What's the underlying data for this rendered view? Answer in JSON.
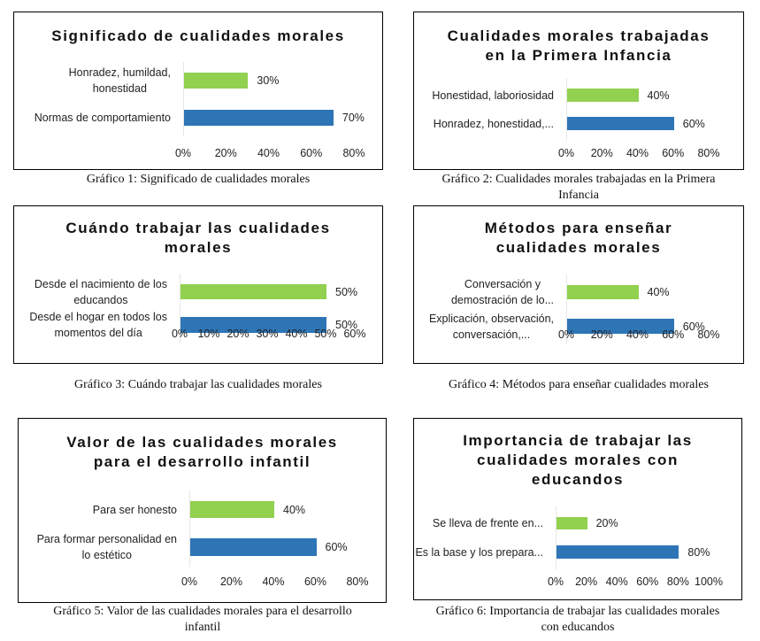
{
  "colors": {
    "green": "#92d050",
    "blue": "#2e75b6"
  },
  "chart_data": [
    {
      "type": "bar",
      "orientation": "horizontal",
      "title_lines": [
        "Significado de cualidades morales"
      ],
      "categories": [
        [
          "Honradez, humildad,",
          "honestidad"
        ],
        [
          "Normas de comportamiento"
        ]
      ],
      "values": [
        30,
        70
      ],
      "value_labels": [
        "30%",
        "70%"
      ],
      "bar_colors": [
        "#92d050",
        "#2e75b6"
      ],
      "xlim": [
        0,
        80
      ],
      "ticks": [
        "0%",
        "20%",
        "40%",
        "60%",
        "80%"
      ],
      "caption_lines": [
        "Gráfico 1: Significado de cualidades morales"
      ]
    },
    {
      "type": "bar",
      "orientation": "horizontal",
      "title_lines": [
        "Cualidades morales trabajadas",
        "en la Primera Infancia"
      ],
      "categories": [
        [
          "Honestidad, laboriosidad"
        ],
        [
          "Honradez, honestidad,..."
        ]
      ],
      "values": [
        40,
        60
      ],
      "value_labels": [
        "40%",
        "60%"
      ],
      "bar_colors": [
        "#92d050",
        "#2e75b6"
      ],
      "xlim": [
        0,
        80
      ],
      "ticks": [
        "0%",
        "20%",
        "40%",
        "60%",
        "80%"
      ],
      "caption_lines": [
        "Gráfico 2: Cualidades morales trabajadas en la Primera",
        "Infancia"
      ]
    },
    {
      "type": "bar",
      "orientation": "horizontal",
      "title_lines": [
        "Cuándo trabajar las cualidades",
        "morales"
      ],
      "categories": [
        [
          "Desde el nacimiento de los",
          "educandos"
        ],
        [
          "Desde el hogar en todos los",
          "momentos del día"
        ]
      ],
      "values": [
        50,
        50
      ],
      "value_labels": [
        "50%",
        "50%"
      ],
      "bar_colors": [
        "#92d050",
        "#2e75b6"
      ],
      "xlim": [
        0,
        60
      ],
      "ticks": [
        "0%",
        "10%",
        "20%",
        "30%",
        "40%",
        "50%",
        "60%"
      ],
      "caption_lines": [
        "Gráfico 3: Cuándo trabajar las cualidades morales"
      ]
    },
    {
      "type": "bar",
      "orientation": "horizontal",
      "title_lines": [
        "Métodos para enseñar",
        "cualidades morales"
      ],
      "categories": [
        [
          "Conversación y",
          "demostración de lo..."
        ],
        [
          "Explicación, observación,",
          "conversación,..."
        ]
      ],
      "values": [
        40,
        60
      ],
      "value_labels": [
        "40%",
        "60%"
      ],
      "bar_colors": [
        "#92d050",
        "#2e75b6"
      ],
      "xlim": [
        0,
        80
      ],
      "ticks": [
        "0%",
        "20%",
        "40%",
        "60%",
        "80%"
      ],
      "caption_lines": [
        "Gráfico 4: Métodos para enseñar cualidades morales"
      ]
    },
    {
      "type": "bar",
      "orientation": "horizontal",
      "title_lines": [
        "Valor de las cualidades morales",
        "para el desarrollo infantil"
      ],
      "categories": [
        [
          "Para ser honesto"
        ],
        [
          "Para formar personalidad en",
          "lo estético"
        ]
      ],
      "values": [
        40,
        60
      ],
      "value_labels": [
        "40%",
        "60%"
      ],
      "bar_colors": [
        "#92d050",
        "#2e75b6"
      ],
      "xlim": [
        0,
        80
      ],
      "ticks": [
        "0%",
        "20%",
        "40%",
        "60%",
        "80%"
      ],
      "caption_lines": [
        "Gráfico 5: Valor de las cualidades morales para el desarrollo",
        "infantil"
      ]
    },
    {
      "type": "bar",
      "orientation": "horizontal",
      "title_lines": [
        "Importancia de trabajar las",
        "cualidades morales con",
        "educandos"
      ],
      "categories": [
        [
          "Se lleva de frente en..."
        ],
        [
          "Es la base y los prepara..."
        ]
      ],
      "values": [
        20,
        80
      ],
      "value_labels": [
        "20%",
        "80%"
      ],
      "bar_colors": [
        "#92d050",
        "#2e75b6"
      ],
      "xlim": [
        0,
        100
      ],
      "ticks": [
        "0%",
        "20%",
        "40%",
        "60%",
        "80%",
        "100%"
      ],
      "caption_lines": [
        "Gráfico 6:  Importancia de trabajar las cualidades morales",
        "con educandos"
      ]
    }
  ]
}
